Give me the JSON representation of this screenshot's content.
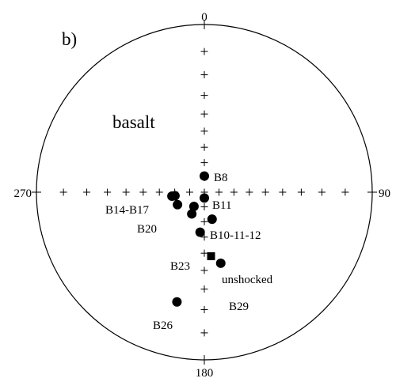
{
  "panel_label": "b)",
  "rock_label": "basalt",
  "directions": {
    "north": "0",
    "east": "90",
    "south": "180",
    "west": "270"
  },
  "samples": [
    {
      "label": "B8",
      "symbol": "circle",
      "declination": 0,
      "inclination": 79
    },
    {
      "label": "B11",
      "symbol": "circle",
      "declination": 180,
      "inclination": 86
    },
    {
      "label": "B14",
      "symbol": "circle",
      "declination": 263,
      "inclination": 68
    },
    {
      "label": "B17",
      "symbol": "circle",
      "declination": 263,
      "inclination": 70
    },
    {
      "label": "B20",
      "symbol": "circle",
      "declination": 245,
      "inclination": 70
    },
    {
      "label": "B10",
      "symbol": "circle",
      "declination": 210,
      "inclination": 73
    },
    {
      "label": "B11b",
      "symbol": "circle",
      "declination": 216,
      "inclination": 78
    },
    {
      "label": "B12",
      "symbol": "circle",
      "declination": 164,
      "inclination": 71
    },
    {
      "label": "B23",
      "symbol": "circle",
      "declination": 186,
      "inclination": 63
    },
    {
      "label": "unshocked",
      "symbol": "square",
      "declination": 174,
      "inclination": 48
    },
    {
      "label": "B29",
      "symbol": "circle",
      "declination": 167,
      "inclination": 43
    },
    {
      "label": "B26",
      "symbol": "circle",
      "declination": 194,
      "inclination": 22
    }
  ],
  "annotations": [
    {
      "text": "B8",
      "ref": "B8"
    },
    {
      "text": "B11",
      "ref": "B11"
    },
    {
      "text": "B14-B17",
      "ref": "B14"
    },
    {
      "text": "B20",
      "ref": "B20"
    },
    {
      "text": "B10-11-12",
      "ref": "B10"
    },
    {
      "text": "B23",
      "ref": "B23"
    },
    {
      "text": "unshocked",
      "ref": "unshocked"
    },
    {
      "text": "B29",
      "ref": "B29"
    },
    {
      "text": "B26",
      "ref": "B26"
    }
  ]
}
